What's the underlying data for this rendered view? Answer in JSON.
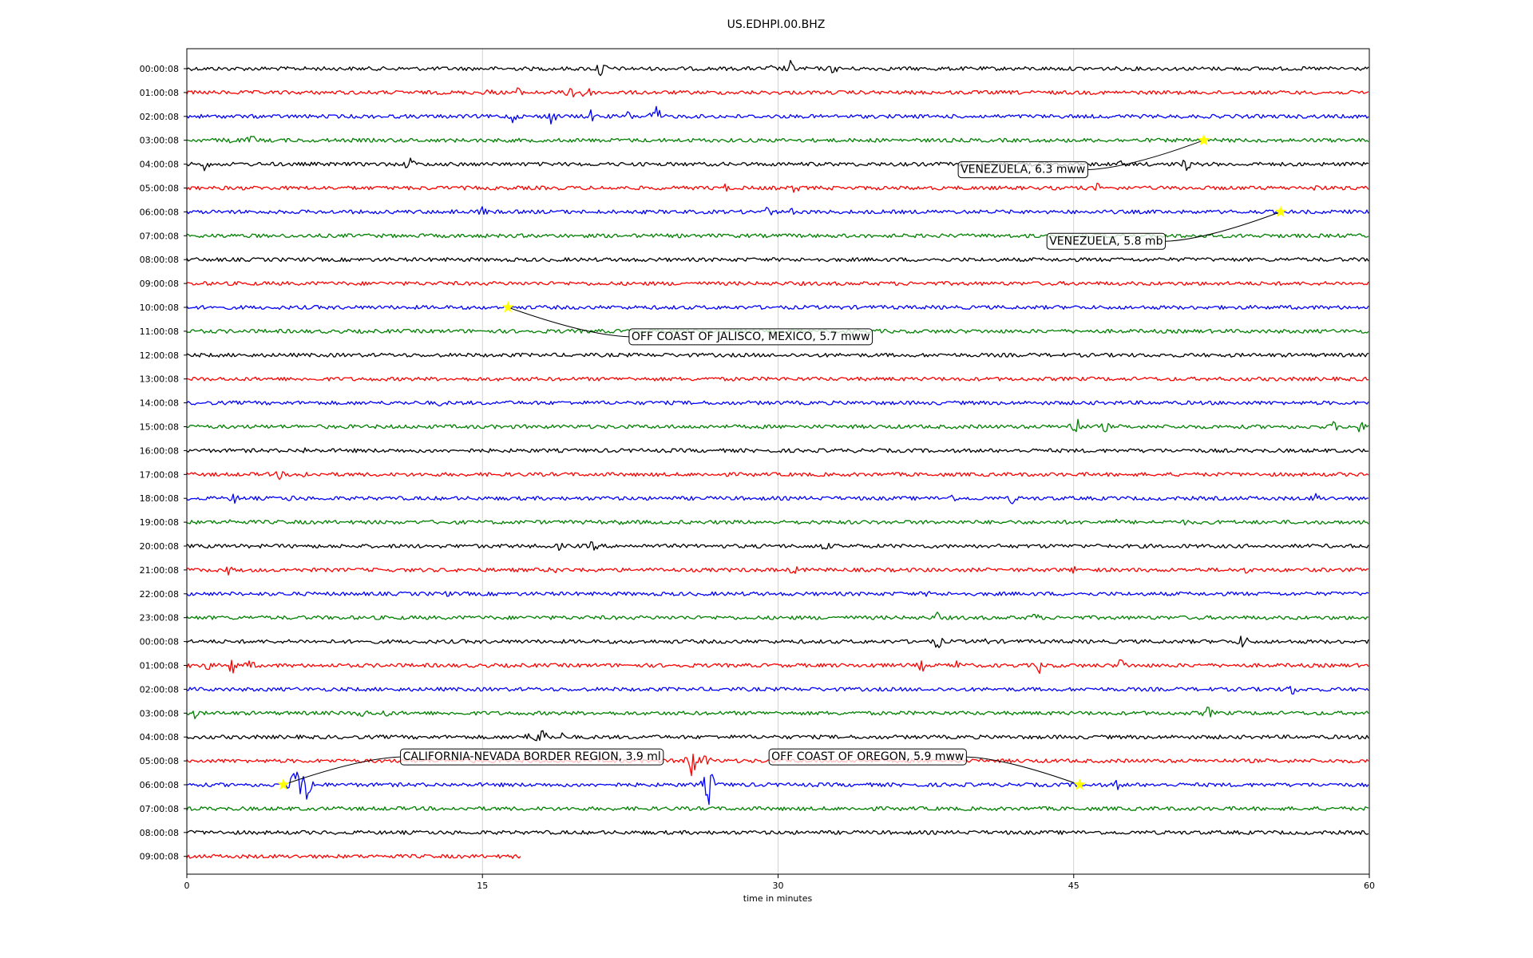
{
  "chart_data": {
    "type": "line",
    "title": "US.EDHPI.00.BHZ",
    "xlabel": "time in minutes",
    "ylabel": "",
    "xlim": [
      0,
      60
    ],
    "x_ticks": [
      0,
      15,
      30,
      45,
      60
    ],
    "grid": "vertical",
    "trace_colors": [
      "#000000",
      "#ff0000",
      "#0000ff",
      "#008000"
    ],
    "highlight_color": "#ffff00",
    "row_labels": [
      "00:00:08",
      "01:00:08",
      "02:00:08",
      "03:00:08",
      "04:00:08",
      "05:00:08",
      "06:00:08",
      "07:00:08",
      "08:00:08",
      "09:00:08",
      "10:00:08",
      "11:00:08",
      "12:00:08",
      "13:00:08",
      "14:00:08",
      "15:00:08",
      "16:00:08",
      "17:00:08",
      "18:00:08",
      "19:00:08",
      "20:00:08",
      "21:00:08",
      "22:00:08",
      "23:00:08",
      "00:00:08",
      "01:00:08",
      "02:00:08",
      "03:00:08",
      "04:00:08",
      "05:00:08",
      "06:00:08",
      "07:00:08",
      "08:00:08",
      "09:00:08"
    ],
    "last_row_end_minute": 17,
    "bursts": [
      {
        "row": 0,
        "minute": 21.0,
        "amp": 14
      },
      {
        "row": 0,
        "minute": 30.6,
        "amp": 12
      },
      {
        "row": 0,
        "minute": 32.8,
        "amp": 8
      },
      {
        "row": 0,
        "minute": 29.6,
        "amp": 6
      },
      {
        "row": 1,
        "minute": 15.3,
        "amp": 7
      },
      {
        "row": 1,
        "minute": 16.7,
        "amp": 10
      },
      {
        "row": 1,
        "minute": 19.5,
        "amp": 12
      },
      {
        "row": 1,
        "minute": 20.2,
        "amp": 14
      },
      {
        "row": 2,
        "minute": 16.5,
        "amp": 10
      },
      {
        "row": 2,
        "minute": 18.5,
        "amp": 12
      },
      {
        "row": 2,
        "minute": 20.5,
        "amp": 9
      },
      {
        "row": 2,
        "minute": 22.4,
        "amp": 8
      },
      {
        "row": 2,
        "minute": 23.8,
        "amp": 16
      },
      {
        "row": 3,
        "minute": 2.1,
        "amp": 8
      },
      {
        "row": 3,
        "minute": 3.3,
        "amp": 9
      },
      {
        "row": 4,
        "minute": 0.9,
        "amp": 9
      },
      {
        "row": 4,
        "minute": 11.3,
        "amp": 11
      },
      {
        "row": 4,
        "minute": 47.5,
        "amp": 7
      },
      {
        "row": 4,
        "minute": 50.7,
        "amp": 10
      },
      {
        "row": 5,
        "minute": 27.3,
        "amp": 6
      },
      {
        "row": 5,
        "minute": 30.9,
        "amp": 9
      },
      {
        "row": 5,
        "minute": 46.2,
        "amp": 7
      },
      {
        "row": 5,
        "minute": 57.4,
        "amp": 7
      },
      {
        "row": 6,
        "minute": 13.5,
        "amp": 6
      },
      {
        "row": 6,
        "minute": 15.0,
        "amp": 8
      },
      {
        "row": 6,
        "minute": 29.5,
        "amp": 9
      },
      {
        "row": 6,
        "minute": 30.8,
        "amp": 7
      },
      {
        "row": 8,
        "minute": 22.3,
        "amp": 6
      },
      {
        "row": 14,
        "minute": 12.8,
        "amp": 5
      },
      {
        "row": 15,
        "minute": 45.1,
        "amp": 16
      },
      {
        "row": 15,
        "minute": 46.6,
        "amp": 8
      },
      {
        "row": 15,
        "minute": 58.2,
        "amp": 8
      },
      {
        "row": 15,
        "minute": 59.5,
        "amp": 10
      },
      {
        "row": 16,
        "minute": 6.0,
        "amp": 5
      },
      {
        "row": 17,
        "minute": 4.7,
        "amp": 7
      },
      {
        "row": 17,
        "minute": 5.9,
        "amp": 8
      },
      {
        "row": 18,
        "minute": 2.4,
        "amp": 8
      },
      {
        "row": 18,
        "minute": 5.3,
        "amp": 6
      },
      {
        "row": 18,
        "minute": 38.8,
        "amp": 7
      },
      {
        "row": 18,
        "minute": 41.9,
        "amp": 8
      },
      {
        "row": 18,
        "minute": 57.3,
        "amp": 8
      },
      {
        "row": 19,
        "minute": 2.3,
        "amp": 6
      },
      {
        "row": 19,
        "minute": 22.0,
        "amp": 5
      },
      {
        "row": 19,
        "minute": 47.1,
        "amp": 5
      },
      {
        "row": 19,
        "minute": 50.7,
        "amp": 5
      },
      {
        "row": 20,
        "minute": 18.9,
        "amp": 6
      },
      {
        "row": 20,
        "minute": 20.6,
        "amp": 9
      },
      {
        "row": 20,
        "minute": 32.4,
        "amp": 8
      },
      {
        "row": 21,
        "minute": 2.1,
        "amp": 7
      },
      {
        "row": 21,
        "minute": 18.6,
        "amp": 7
      },
      {
        "row": 21,
        "minute": 20.4,
        "amp": 8
      },
      {
        "row": 21,
        "minute": 30.8,
        "amp": 8
      },
      {
        "row": 21,
        "minute": 45.1,
        "amp": 7
      },
      {
        "row": 21,
        "minute": 53.8,
        "amp": 6
      },
      {
        "row": 22,
        "minute": 13.2,
        "amp": 5
      },
      {
        "row": 22,
        "minute": 37.6,
        "amp": 5
      },
      {
        "row": 23,
        "minute": 38.1,
        "amp": 8
      },
      {
        "row": 23,
        "minute": 43.0,
        "amp": 9
      },
      {
        "row": 24,
        "minute": 38.1,
        "amp": 11
      },
      {
        "row": 24,
        "minute": 40.5,
        "amp": 6
      },
      {
        "row": 24,
        "minute": 53.6,
        "amp": 12
      },
      {
        "row": 25,
        "minute": 0.3,
        "amp": 10
      },
      {
        "row": 25,
        "minute": 1.1,
        "amp": 8
      },
      {
        "row": 25,
        "minute": 2.3,
        "amp": 14
      },
      {
        "row": 25,
        "minute": 3.2,
        "amp": 9
      },
      {
        "row": 25,
        "minute": 34.7,
        "amp": 6
      },
      {
        "row": 25,
        "minute": 37.3,
        "amp": 9
      },
      {
        "row": 25,
        "minute": 39.0,
        "amp": 10
      },
      {
        "row": 25,
        "minute": 43.3,
        "amp": 12
      },
      {
        "row": 25,
        "minute": 47.4,
        "amp": 12
      },
      {
        "row": 26,
        "minute": 56.1,
        "amp": 10
      },
      {
        "row": 27,
        "minute": 0.4,
        "amp": 7
      },
      {
        "row": 27,
        "minute": 8.9,
        "amp": 9
      },
      {
        "row": 27,
        "minute": 10.1,
        "amp": 7
      },
      {
        "row": 27,
        "minute": 51.8,
        "amp": 10
      },
      {
        "row": 27,
        "minute": 54.7,
        "amp": 6
      },
      {
        "row": 28,
        "minute": 17.2,
        "amp": 8
      },
      {
        "row": 28,
        "minute": 18.0,
        "amp": 18
      },
      {
        "row": 28,
        "minute": 19.0,
        "amp": 7
      },
      {
        "row": 29,
        "minute": 25.6,
        "amp": 24
      },
      {
        "row": 29,
        "minute": 26.3,
        "amp": 12
      },
      {
        "row": 30,
        "minute": 5.5,
        "amp": 26
      },
      {
        "row": 30,
        "minute": 6.0,
        "amp": 34
      },
      {
        "row": 30,
        "minute": 26.5,
        "amp": 26
      },
      {
        "row": 30,
        "minute": 47.2,
        "amp": 8
      },
      {
        "row": 33,
        "minute": 16.5,
        "amp": 3
      }
    ],
    "annotations": [
      {
        "text": "VENEZUELA, 6.3 mww",
        "row": 3,
        "minute": 51.6,
        "label_row": 4.2,
        "label_minute": 39.1
      },
      {
        "text": "VENEZUELA, 5.8 mb",
        "row": 6,
        "minute": 55.5,
        "label_row": 7.2,
        "label_minute": 43.6
      },
      {
        "text": "OFF COAST OF JALISCO, MEXICO, 5.7 mww",
        "row": 10,
        "minute": 16.3,
        "label_row": 11.2,
        "label_minute": 22.4
      },
      {
        "text": "CALIFORNIA-NEVADA BORDER REGION, 3.9 ml",
        "row": 30,
        "minute": 4.9,
        "label_row": 28.8,
        "label_minute": 10.8
      },
      {
        "text": "OFF COAST OF OREGON, 5.9 mww",
        "row": 30,
        "minute": 45.3,
        "label_row": 28.8,
        "label_minute": 29.5
      }
    ]
  }
}
